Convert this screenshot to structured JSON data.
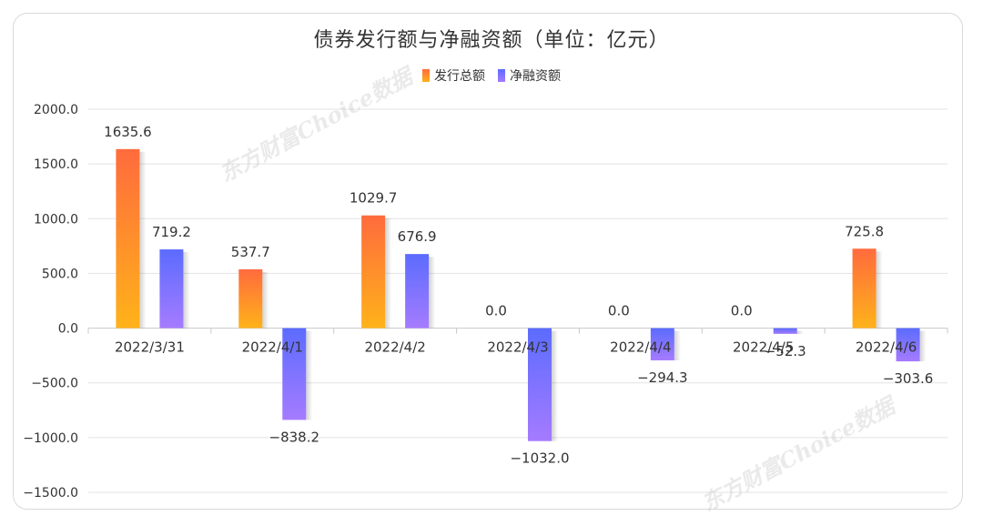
{
  "chart_data": {
    "type": "bar",
    "title": "债券发行额与净融资额（单位：亿元）",
    "categories": [
      "2022/3/31",
      "2022/4/1",
      "2022/4/2",
      "2022/4/3",
      "2022/4/4",
      "2022/4/5",
      "2022/4/6"
    ],
    "series": [
      {
        "name": "发行总额",
        "values": [
          1635.6,
          537.7,
          1029.7,
          0.0,
          0.0,
          0.0,
          725.8
        ],
        "labels": [
          "1635.6",
          "537.7",
          "1029.7",
          "0.0",
          "0.0",
          "0.0",
          "725.8"
        ],
        "color_top": "#ff6b3d",
        "color_bottom": "#ffb21a"
      },
      {
        "name": "净融资额",
        "values": [
          719.2,
          -838.2,
          676.9,
          -1032.0,
          -294.3,
          -52.3,
          -303.6
        ],
        "labels": [
          "719.2",
          "−838.2",
          "676.9",
          "−1032.0",
          "−294.3",
          "−52.3",
          "−303.6"
        ],
        "color_top": "#5b6cff",
        "color_bottom": "#a57bff"
      }
    ],
    "yticks": [
      "2000.0",
      "1500.0",
      "1000.0",
      "500.0",
      "0.0",
      "−500.0",
      "−1000.0",
      "−1500.0"
    ],
    "ylim": [
      -1500,
      2000
    ],
    "grid": true,
    "legend_position": "top-center"
  },
  "watermark": "东方财富Choice数据"
}
